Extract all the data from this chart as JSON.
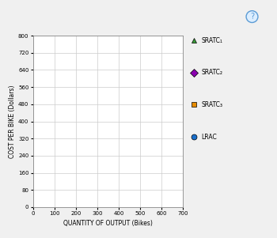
{
  "ylabel": "COST PER BIKE (Dollars)",
  "xlabel": "QUANTITY OF OUTPUT (Bikes)",
  "xlim": [
    0,
    700
  ],
  "ylim": [
    0,
    800
  ],
  "xticks": [
    0,
    100,
    200,
    300,
    400,
    500,
    600,
    700
  ],
  "yticks": [
    0,
    80,
    160,
    240,
    320,
    400,
    480,
    560,
    640,
    720,
    800
  ],
  "outer_bg": "#f0f0f0",
  "plot_bg": "#ffffff",
  "grid_color": "#cccccc",
  "legend_items": [
    {
      "label": "SRATC₁",
      "color": "#3a9e3a",
      "marker": "^"
    },
    {
      "label": "SRATC₂",
      "color": "#8b00b0",
      "marker": "D"
    },
    {
      "label": "SRATC₃",
      "color": "#e88c00",
      "marker": "s"
    },
    {
      "label": "LRAC",
      "color": "#1a6fcc",
      "marker": "o"
    }
  ],
  "info_icon_color": "#5b9bd5",
  "frame_color": "#b0b0b0"
}
